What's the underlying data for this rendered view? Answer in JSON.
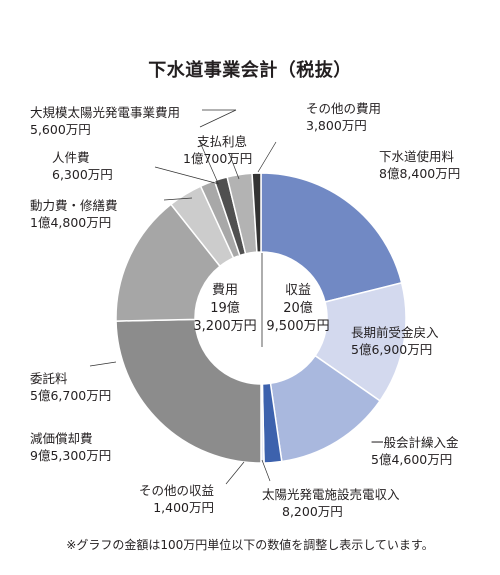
{
  "chart_data": {
    "type": "pie",
    "title": "下水道事業会計（税抜）",
    "footnote": "※グラフの金額は100万円単位以下の数値を調整し表示しています。",
    "center": {
      "expense": {
        "label": "費用",
        "line1": "19億",
        "line2": "3,200万円"
      },
      "revenue": {
        "label": "収益",
        "line1": "20億",
        "line2": "9,500万円"
      }
    },
    "revenue": {
      "total": 2095,
      "slices": [
        {
          "label": "下水道使用料",
          "amount": "8億8,400万円",
          "value": 884,
          "color": "#7189c4"
        },
        {
          "label": "長期前受金戻入",
          "amount": "5億6,900万円",
          "value": 569,
          "color": "#d3d9ee"
        },
        {
          "label": "一般会計繰入金",
          "amount": "5億4,600万円",
          "value": 546,
          "color": "#a9b8de"
        },
        {
          "label": "太陽光発電施設売電収入",
          "amount": "8,200万円",
          "value": 82,
          "color": "#3d62ad"
        },
        {
          "label": "その他の収益",
          "amount": "1,400万円",
          "value": 14,
          "color": "#e4e8f5"
        }
      ]
    },
    "expense": {
      "total": 1932,
      "slices": [
        {
          "label": "減価償却費",
          "amount": "9億5,300万円",
          "value": 953,
          "color": "#8c8c8c"
        },
        {
          "label": "委託料",
          "amount": "5億6,700万円",
          "value": 567,
          "color": "#a6a6a6"
        },
        {
          "label": "動力費・修繕費",
          "amount": "1億4,800万円",
          "value": 148,
          "color": "#cccccc"
        },
        {
          "label": "人件費",
          "amount": "6,300万円",
          "value": 63,
          "color": "#a8a8a8"
        },
        {
          "label": "大規模太陽光発電事業費用",
          "amount": "5,600万円",
          "value": 56,
          "color": "#505050"
        },
        {
          "label": "支払利息",
          "amount": "1億700万円",
          "value": 107,
          "color": "#b3b3b3"
        },
        {
          "label": "その他の費用",
          "amount": "3,800万円",
          "value": 38,
          "color": "#333333"
        }
      ]
    }
  }
}
